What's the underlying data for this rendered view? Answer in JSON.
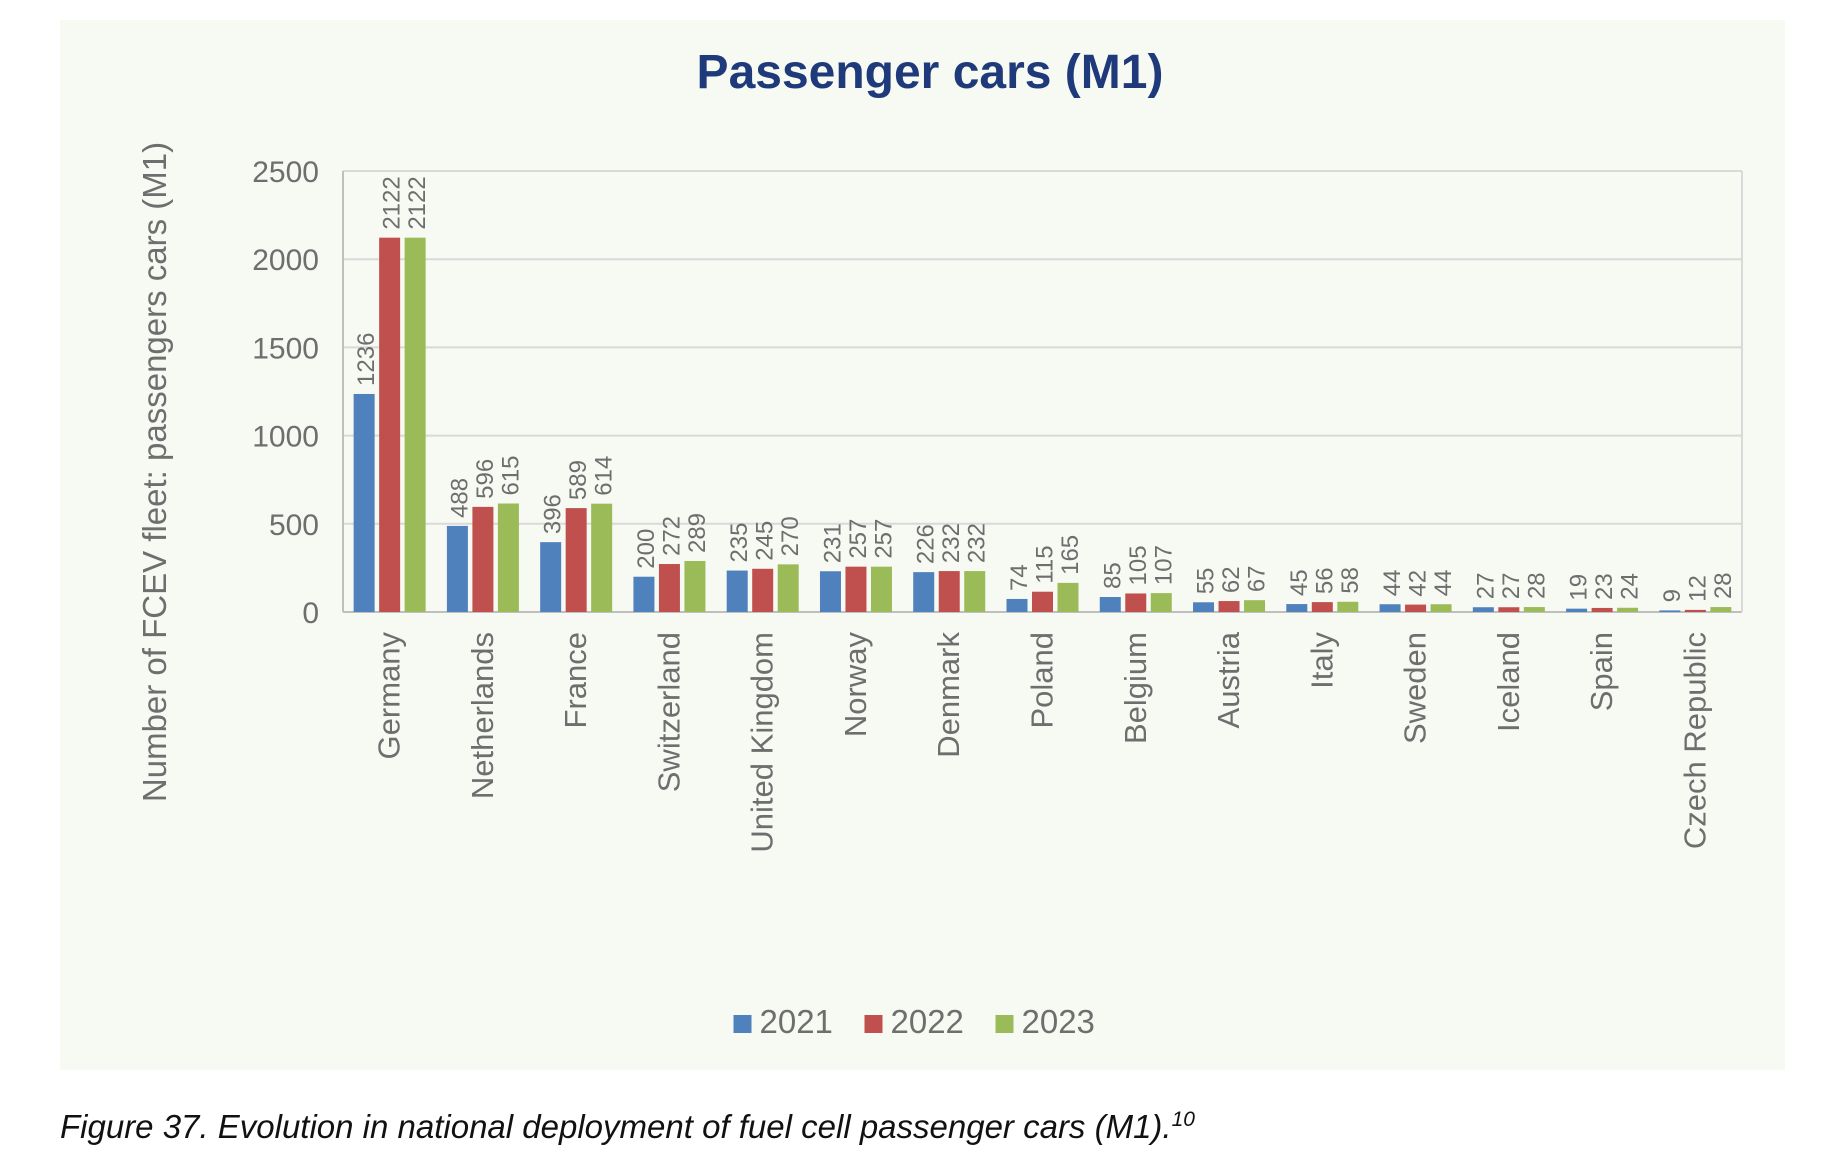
{
  "figure": {
    "caption": "Figure 37. Evolution in national deployment of fuel cell passenger cars (M1).",
    "footnote_ref": "10"
  },
  "chart_data": {
    "type": "bar",
    "title": "Passenger cars (M1)",
    "xlabel": "",
    "ylabel": "Number of FCEV fleet: passengers cars (M1)",
    "ylim": [
      0,
      2500
    ],
    "yticks": [
      0,
      500,
      1000,
      1500,
      2000,
      2500
    ],
    "grid": true,
    "legend_position": "bottom",
    "data_labels": true,
    "categories": [
      "Germany",
      "Netherlands",
      "France",
      "Switzerland",
      "United Kingdom",
      "Norway",
      "Denmark",
      "Poland",
      "Belgium",
      "Austria",
      "Italy",
      "Sweden",
      "Iceland",
      "Spain",
      "Czech Republic"
    ],
    "series": [
      {
        "name": "2021",
        "color": "#4f81bd",
        "values": [
          1236,
          488,
          396,
          200,
          235,
          231,
          226,
          74,
          85,
          55,
          45,
          44,
          27,
          19,
          9
        ]
      },
      {
        "name": "2022",
        "color": "#c0504d",
        "values": [
          2122,
          596,
          589,
          272,
          245,
          257,
          232,
          115,
          105,
          62,
          56,
          42,
          27,
          23,
          12
        ]
      },
      {
        "name": "2023",
        "color": "#9bbb59",
        "values": [
          2122,
          615,
          614,
          289,
          270,
          257,
          232,
          165,
          107,
          67,
          58,
          44,
          28,
          24,
          28
        ]
      }
    ]
  },
  "colors": {
    "title": "#1f3a7a",
    "axis_text": "#6e6e6e",
    "gridline": "#d9d9d9",
    "panel_background": "#f7f9f3"
  }
}
